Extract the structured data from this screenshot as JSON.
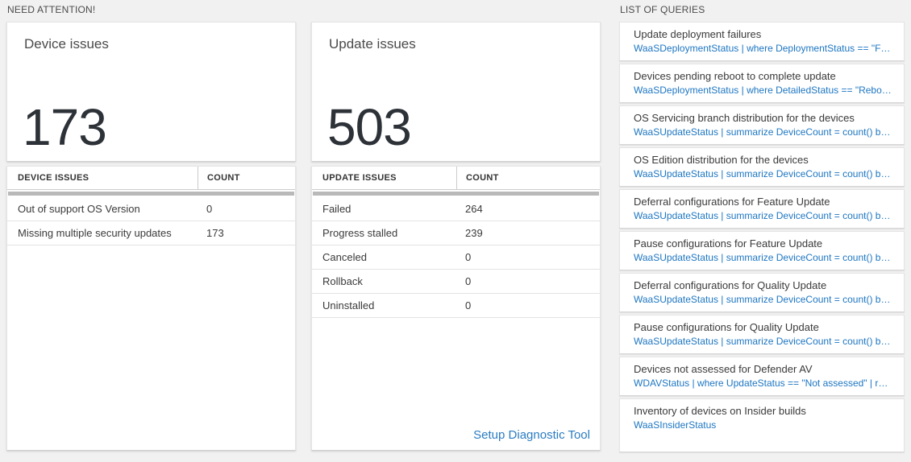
{
  "sections": {
    "need_attention_label": "NEED ATTENTION!",
    "queries_label": "LIST OF QUERIES"
  },
  "device_card": {
    "title": "Device issues",
    "count": "173",
    "table": {
      "headers": [
        "DEVICE ISSUES",
        "COUNT"
      ],
      "rows": [
        {
          "label": "Out of support OS Version",
          "count": "0"
        },
        {
          "label": "Missing multiple security updates",
          "count": "173"
        }
      ]
    }
  },
  "update_card": {
    "title": "Update issues",
    "count": "503",
    "table": {
      "headers": [
        "UPDATE ISSUES",
        "COUNT"
      ],
      "rows": [
        {
          "label": "Failed",
          "count": "264"
        },
        {
          "label": "Progress stalled",
          "count": "239"
        },
        {
          "label": "Canceled",
          "count": "0"
        },
        {
          "label": "Rollback",
          "count": "0"
        },
        {
          "label": "Uninstalled",
          "count": "0"
        }
      ]
    },
    "link_label": "Setup Diagnostic Tool"
  },
  "queries": [
    {
      "title": "Update deployment failures",
      "query": "WaaSDeploymentStatus | where DeploymentStatus == \"Failed\" |..."
    },
    {
      "title": "Devices pending reboot to complete update",
      "query": "WaaSDeploymentStatus | where DetailedStatus == \"Reboot pend..."
    },
    {
      "title": "OS Servicing branch distribution for the devices",
      "query": "WaaSUpdateStatus | summarize DeviceCount = count() by OSSer..."
    },
    {
      "title": "OS Edition distribution for the devices",
      "query": "WaaSUpdateStatus | summarize DeviceCount = count() by OSEdit..."
    },
    {
      "title": "Deferral configurations for Feature Update",
      "query": "WaaSUpdateStatus | summarize DeviceCount = count() by Featur..."
    },
    {
      "title": "Pause configurations for Feature Update",
      "query": "WaaSUpdateStatus | summarize DeviceCount = count() by Featur..."
    },
    {
      "title": "Deferral configurations for Quality Update",
      "query": "WaaSUpdateStatus | summarize DeviceCount = count() by Qualit..."
    },
    {
      "title": "Pause configurations for Quality Update",
      "query": "WaaSUpdateStatus | summarize DeviceCount = count() by Qualit..."
    },
    {
      "title": "Devices not assessed for Defender AV",
      "query": "WDAVStatus | where UpdateStatus == \"Not assessed\" | render ta..."
    },
    {
      "title": "Inventory of devices on Insider builds",
      "query": "WaaSInsiderStatus"
    }
  ],
  "colors": {
    "link_blue": "#1d76c2",
    "count_text": "#2d3238",
    "page_background": "#f1f1f1",
    "scrollbar_gray": "#b9b9b9"
  }
}
